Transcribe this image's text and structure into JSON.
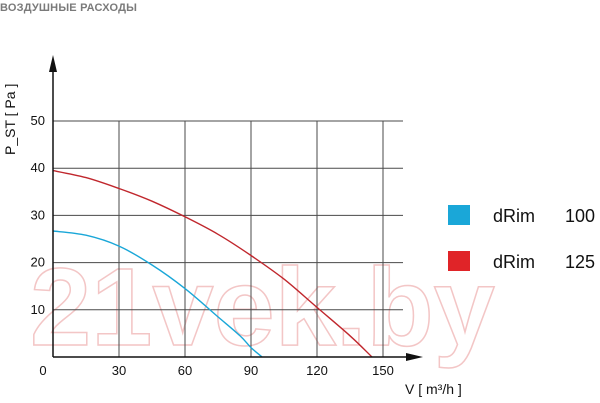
{
  "page": {
    "title": "ВОЗДУШНЫЕ РАСХОДЫ",
    "watermark": "21vek.by"
  },
  "chart_data": {
    "type": "line",
    "title": "ВОЗДУШНЫЕ РАСХОДЫ",
    "xlabel": "V [ m³/h ]",
    "ylabel": "P_ST [ Pa ]",
    "xlim": [
      0,
      150
    ],
    "ylim": [
      0,
      55
    ],
    "x_ticks": [
      0,
      30,
      60,
      90,
      120,
      150
    ],
    "y_ticks": [
      10,
      20,
      30,
      40,
      50
    ],
    "grid": true,
    "legend_position": "right",
    "series": [
      {
        "name": "dRim 100",
        "color": "#1aa7d8",
        "x": [
          0,
          15,
          30,
          45,
          60,
          75,
          85,
          90,
          95
        ],
        "y": [
          26.7,
          25.8,
          23.5,
          19.5,
          14.5,
          8.5,
          4.5,
          2,
          0
        ]
      },
      {
        "name": "dRim 125",
        "color": "#c0272d",
        "x": [
          0,
          15,
          30,
          45,
          60,
          75,
          90,
          105,
          120,
          135,
          145
        ],
        "y": [
          39.5,
          38.0,
          35.7,
          33.0,
          29.7,
          26.0,
          21.5,
          16.5,
          10.5,
          4.5,
          0
        ]
      }
    ],
    "legend": [
      {
        "label": "dRim",
        "value": "100",
        "color": "#1aa7d8"
      },
      {
        "label": "dRim",
        "value": "125",
        "color": "#e02428"
      }
    ]
  }
}
